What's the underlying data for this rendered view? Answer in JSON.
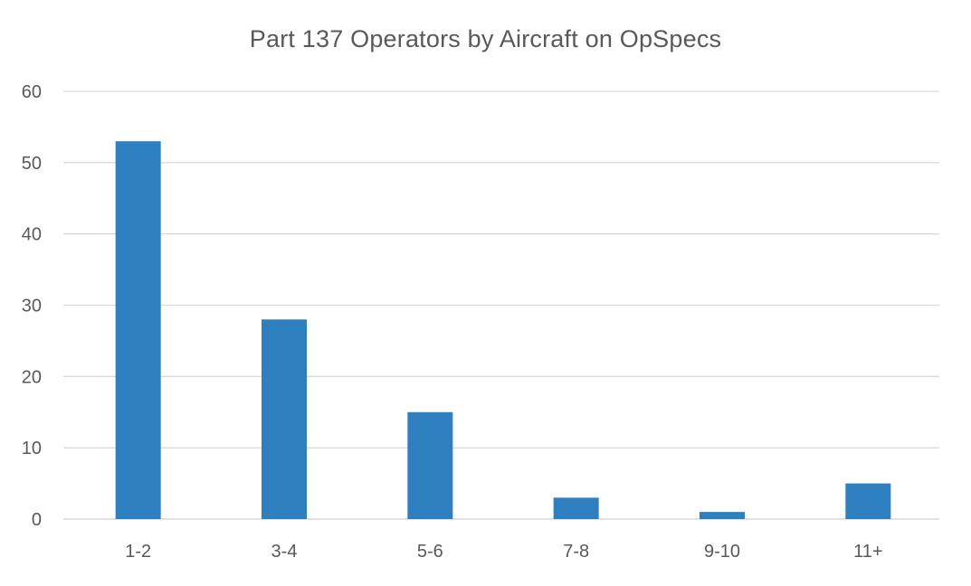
{
  "chart_data": {
    "type": "bar",
    "title": "Part 137 Operators by Aircraft on OpSpecs",
    "xlabel": "",
    "ylabel": "",
    "categories": [
      "1-2",
      "3-4",
      "5-6",
      "7-8",
      "9-10",
      "11+"
    ],
    "values": [
      53,
      28,
      15,
      3,
      1,
      5
    ],
    "ylim": [
      0,
      60
    ],
    "yticks": [
      0,
      10,
      20,
      30,
      40,
      50,
      60
    ],
    "grid": true,
    "legend": "none",
    "bar_color": "#2e7fc0"
  }
}
